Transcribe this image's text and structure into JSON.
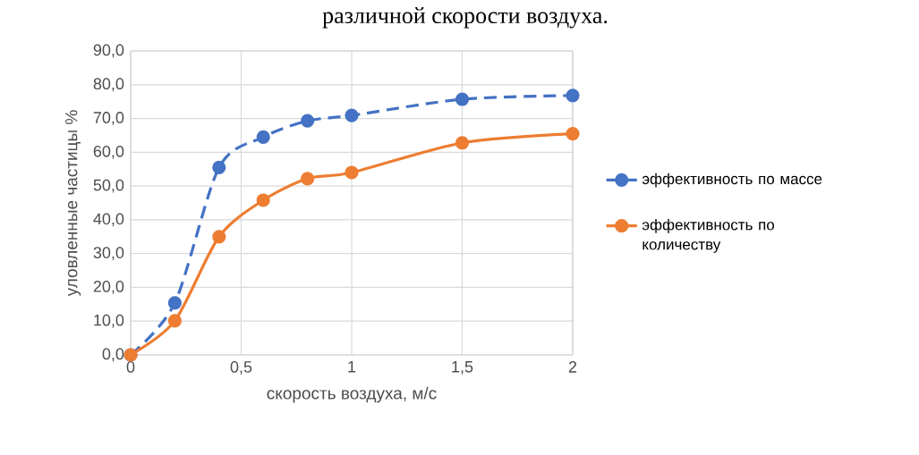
{
  "chart_data": {
    "type": "line",
    "title": "различной скорости воздуха.",
    "xlabel": "скорость воздуха, м/с",
    "ylabel": "уловленные частицы %",
    "x": [
      0,
      0.2,
      0.4,
      0.6,
      0.8,
      1,
      1.5,
      2
    ],
    "series": [
      {
        "name": "эффективность по массе",
        "color": "#4472c4",
        "line_style": "dashed",
        "values": [
          0,
          15.4,
          55.5,
          64.5,
          69.3,
          70.9,
          75.7,
          76.8
        ]
      },
      {
        "name": "эффективность по количеству",
        "color": "#ed7d31",
        "line_style": "solid",
        "values": [
          0,
          10.1,
          35.0,
          45.8,
          52.2,
          54.0,
          62.8,
          65.5
        ]
      }
    ],
    "xlim": [
      0,
      2
    ],
    "ylim": [
      0,
      90
    ],
    "xticks": [
      0,
      {
        "value": 0.5,
        "label": "0,5"
      },
      1,
      {
        "value": 1.5,
        "label": "1,5"
      },
      2
    ],
    "yticks": [
      {
        "value": 0,
        "label": "0,0"
      },
      {
        "value": 10,
        "label": "10,0"
      },
      {
        "value": 20,
        "label": "20,0"
      },
      {
        "value": 30,
        "label": "30,0"
      },
      {
        "value": 40,
        "label": "40,0"
      },
      {
        "value": 50,
        "label": "50,0"
      },
      {
        "value": 60,
        "label": "60,0"
      },
      {
        "value": 70,
        "label": "70,0"
      },
      {
        "value": 80,
        "label": "80,0"
      },
      {
        "value": 90,
        "label": "90,0"
      }
    ],
    "grid": true,
    "legend": "right",
    "marker": "circle"
  }
}
